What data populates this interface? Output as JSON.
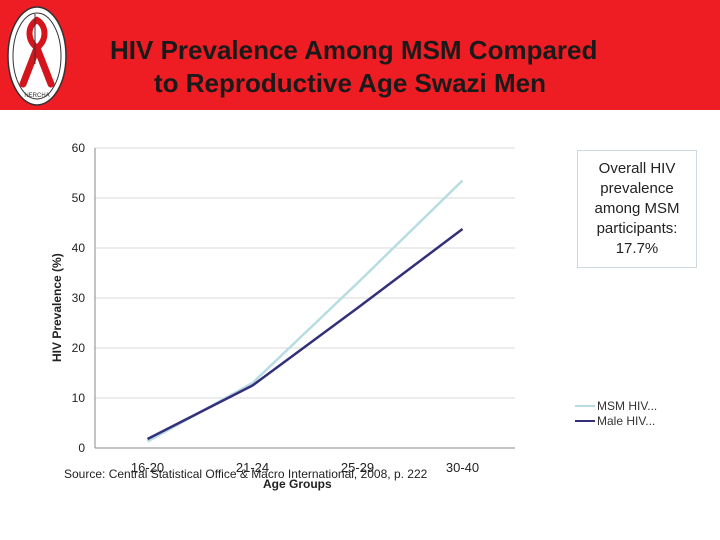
{
  "header": {
    "title_line1": "HIV Prevalence Among MSM Compared",
    "title_line2": "to Reproductive Age Swazi Men",
    "logo_text": "NERCHA",
    "bg_color": "#ee1c23"
  },
  "callout": {
    "text": "Overall HIV prevalence among MSM participants: 17.7%"
  },
  "source": "Source: Central Statistical Office & Macro International, 2008, p. 222",
  "chart_data": {
    "type": "line",
    "title": "",
    "xlabel": "Age Groups",
    "ylabel": "HIV Prevalence (%)",
    "categories": [
      "16-20",
      "21-24",
      "25-29",
      "30-40"
    ],
    "ylim": [
      0,
      60
    ],
    "yticks": [
      "0",
      "10",
      "20",
      "30",
      "40",
      "50",
      "60"
    ],
    "grid": true,
    "legend_position": "right",
    "series": [
      {
        "name": "MSM HIV...",
        "values": [
          1.3,
          13.0,
          33.0,
          53.5
        ],
        "color": "#b7dde2"
      },
      {
        "name": "Male HIV...",
        "values": [
          1.8,
          12.5,
          28.0,
          43.8
        ],
        "color": "#332f7a"
      }
    ]
  }
}
